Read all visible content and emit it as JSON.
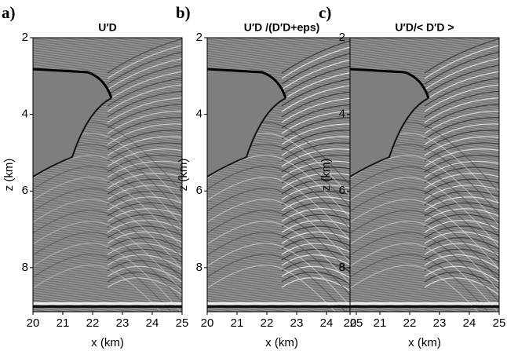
{
  "chart_data": [
    {
      "type": "image",
      "label": "a)",
      "title": "U′D",
      "xlabel": "x (km)",
      "ylabel": "z (km)",
      "xlim": [
        20,
        25
      ],
      "ylim": [
        2,
        9.15
      ],
      "y_inverted": true,
      "xticks": [
        20,
        21,
        22,
        23,
        24,
        25
      ],
      "yticks": [
        2,
        4,
        6,
        8
      ]
    },
    {
      "type": "image",
      "label": "b)",
      "title": "U′D /(D′D+eps)",
      "xlabel": "x (km)",
      "ylabel": "z (km)",
      "xlim": [
        20,
        25
      ],
      "ylim": [
        2,
        9.15
      ],
      "y_inverted": true,
      "xticks": [
        20,
        21,
        22,
        23,
        24,
        25
      ],
      "yticks": [
        2,
        4,
        6,
        8
      ]
    },
    {
      "type": "image",
      "label": "c)",
      "title": "U′D/< D′D >",
      "xlabel": "x (km)",
      "ylabel": "z (km)",
      "xlim": [
        20,
        25
      ],
      "ylim": [
        2,
        9.15
      ],
      "y_inverted": true,
      "xticks": [
        20,
        21,
        22,
        23,
        24,
        25
      ],
      "yticks": [
        2,
        4,
        6,
        8
      ]
    }
  ]
}
